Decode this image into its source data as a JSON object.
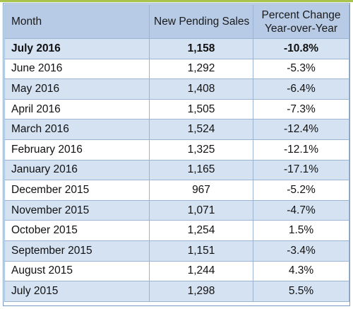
{
  "table": {
    "headers": {
      "month": "Month",
      "sales": "New Pending Sales",
      "pct_line1": "Percent Change",
      "pct_line2": "Year-over-Year"
    },
    "rows": [
      {
        "month": "July 2016",
        "sales": "1,158",
        "pct": "-10.8%"
      },
      {
        "month": "June 2016",
        "sales": "1,292",
        "pct": "-5.3%"
      },
      {
        "month": "May 2016",
        "sales": "1,408",
        "pct": "-6.4%"
      },
      {
        "month": "April 2016",
        "sales": "1,505",
        "pct": "-7.3%"
      },
      {
        "month": "March 2016",
        "sales": "1,524",
        "pct": "-12.4%"
      },
      {
        "month": "February 2016",
        "sales": "1,325",
        "pct": "-12.1%"
      },
      {
        "month": "January 2016",
        "sales": "1,165",
        "pct": "-17.1%"
      },
      {
        "month": "December 2015",
        "sales": "967",
        "pct": "-5.2%"
      },
      {
        "month": "November 2015",
        "sales": "1,071",
        "pct": "-4.7%"
      },
      {
        "month": "October 2015",
        "sales": "1,254",
        "pct": "1.5%"
      },
      {
        "month": "September 2015",
        "sales": "1,151",
        "pct": "-3.4%"
      },
      {
        "month": "August 2015",
        "sales": "1,244",
        "pct": "4.3%"
      },
      {
        "month": "July 2015",
        "sales": "1,298",
        "pct": "5.5%"
      }
    ]
  },
  "colors": {
    "header_bg": "#b7cbe7",
    "band_bg": "#d5e2f2",
    "border": "#9cb4d4",
    "accent_bar": "#a9c44a"
  }
}
